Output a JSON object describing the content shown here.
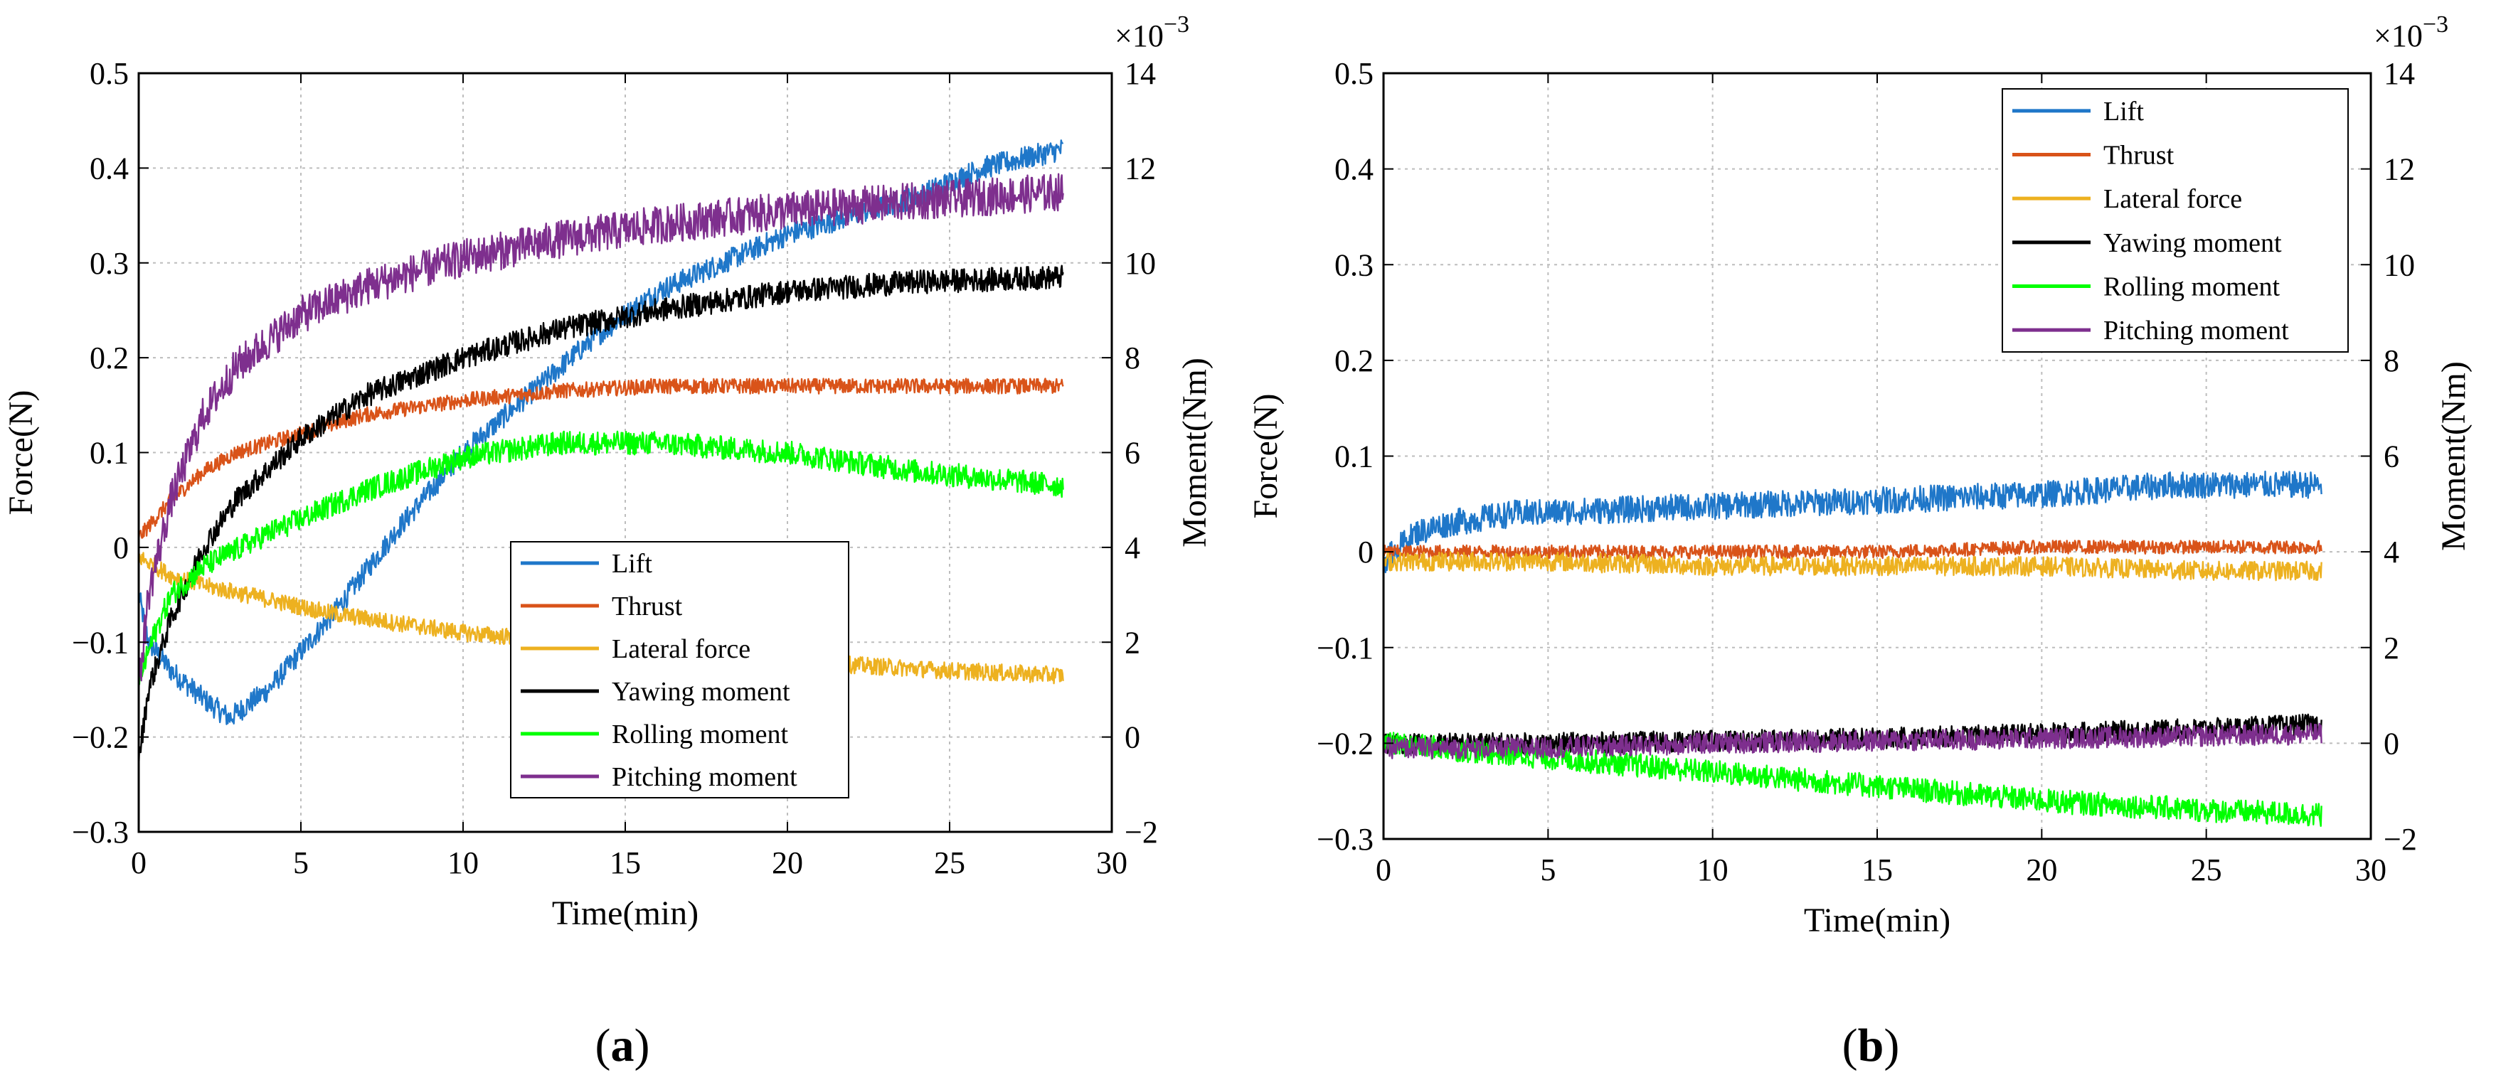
{
  "chart_data": [
    {
      "type": "line",
      "panel_label": {
        "open": "(",
        "letter": "a",
        "close": ")"
      },
      "xlabel": "Time(min)",
      "ylabel_left": "Force(N)",
      "ylabel_right": "Moment(Nm)",
      "right_axis_exponent": "×10",
      "right_axis_exponent_power": "−3",
      "xlim": [
        0,
        30
      ],
      "ylim_left": [
        -0.3,
        0.5
      ],
      "ylim_right": [
        -2,
        14
      ],
      "x_ticks": [
        "0",
        "5",
        "10",
        "15",
        "20",
        "25",
        "30"
      ],
      "y_left_ticks": [
        "−0.3",
        "−0.2",
        "−0.1",
        "0",
        "0.1",
        "0.2",
        "0.3",
        "0.4",
        "0.5"
      ],
      "y_right_ticks": [
        "−2",
        "0",
        "2",
        "4",
        "6",
        "8",
        "10",
        "12",
        "14"
      ],
      "grid": true,
      "legend_position": "lower-right",
      "series": [
        {
          "name": "Lift",
          "color": "#1F77C9",
          "axis": "left",
          "noise": 0.012,
          "x": [
            0,
            0.3,
            1,
            2,
            2.8,
            4,
            6,
            8,
            10,
            12,
            14,
            16,
            18,
            20,
            22,
            24,
            26,
            28.5
          ],
          "y": [
            -0.05,
            -0.1,
            -0.13,
            -0.16,
            -0.18,
            -0.15,
            -0.07,
            0.02,
            0.1,
            0.16,
            0.22,
            0.27,
            0.3,
            0.33,
            0.35,
            0.37,
            0.4,
            0.42
          ]
        },
        {
          "name": "Thrust",
          "color": "#D95319",
          "axis": "left",
          "noise": 0.008,
          "x": [
            0,
            0.5,
            1,
            2,
            3,
            5,
            7,
            10,
            13,
            16,
            20,
            24,
            28.5
          ],
          "y": [
            0.01,
            0.03,
            0.05,
            0.08,
            0.1,
            0.12,
            0.14,
            0.155,
            0.165,
            0.17,
            0.17,
            0.17,
            0.17
          ]
        },
        {
          "name": "Lateral force",
          "color": "#EDB120",
          "axis": "left",
          "noise": 0.009,
          "x": [
            0,
            0.5,
            1,
            2,
            4,
            6,
            10,
            15,
            20,
            25,
            28.5
          ],
          "y": [
            -0.01,
            -0.02,
            -0.03,
            -0.04,
            -0.055,
            -0.07,
            -0.09,
            -0.105,
            -0.12,
            -0.13,
            -0.135
          ]
        },
        {
          "name": "Yawing moment",
          "color": "#000000",
          "axis": "right",
          "noise": 0.25,
          "x": [
            0,
            0.3,
            1,
            2,
            3,
            5,
            7,
            10,
            13,
            16,
            20,
            24,
            28.5
          ],
          "y": [
            -0.5,
            1.0,
            2.5,
            4.0,
            5.0,
            6.3,
            7.2,
            8.0,
            8.6,
            9.0,
            9.4,
            9.6,
            9.7
          ]
        },
        {
          "name": "Rolling moment",
          "color": "#00FF00",
          "axis": "right",
          "noise": 0.25,
          "x": [
            0,
            0.5,
            1,
            2,
            4,
            7,
            10,
            13,
            16,
            20,
            24,
            28.5
          ],
          "y": [
            1.2,
            2.2,
            3.0,
            3.6,
            4.3,
            5.2,
            5.9,
            6.2,
            6.2,
            6.0,
            5.6,
            5.3
          ]
        },
        {
          "name": "Pitching moment",
          "color": "#7E2F8E",
          "axis": "right",
          "noise": 0.4,
          "x": [
            0,
            0.3,
            1,
            2,
            3,
            5,
            7,
            10,
            13,
            16,
            20,
            24,
            28.5
          ],
          "y": [
            1.0,
            3.0,
            5.0,
            6.8,
            7.8,
            8.9,
            9.5,
            10.1,
            10.5,
            10.8,
            11.1,
            11.3,
            11.5
          ]
        }
      ]
    },
    {
      "type": "line",
      "panel_label": {
        "open": "(",
        "letter": "b",
        "close": ")"
      },
      "xlabel": "Time(min)",
      "ylabel_left": "Force(N)",
      "ylabel_right": "Moment(Nm)",
      "right_axis_exponent": "×10",
      "right_axis_exponent_power": "−3",
      "xlim": [
        0,
        30
      ],
      "ylim_left": [
        -0.3,
        0.5
      ],
      "ylim_right": [
        -2,
        14
      ],
      "x_ticks": [
        "0",
        "5",
        "10",
        "15",
        "20",
        "25",
        "30"
      ],
      "y_left_ticks": [
        "−0.3",
        "−0.2",
        "−0.1",
        "0",
        "0.1",
        "0.2",
        "0.3",
        "0.4",
        "0.5"
      ],
      "y_right_ticks": [
        "−2",
        "0",
        "2",
        "4",
        "6",
        "8",
        "10",
        "12",
        "14"
      ],
      "grid": true,
      "legend_position": "top-right",
      "series": [
        {
          "name": "Lift",
          "color": "#1F77C9",
          "axis": "left",
          "noise": 0.014,
          "x": [
            0,
            0.3,
            1,
            2,
            4,
            8,
            12,
            16,
            20,
            24,
            28.5
          ],
          "y": [
            -0.01,
            0.0,
            0.02,
            0.03,
            0.04,
            0.045,
            0.05,
            0.055,
            0.06,
            0.07,
            0.07
          ]
        },
        {
          "name": "Thrust",
          "color": "#D95319",
          "axis": "left",
          "noise": 0.007,
          "x": [
            0,
            5,
            10,
            15,
            20,
            25,
            28.5
          ],
          "y": [
            0.0,
            0.0,
            0.0,
            0.0,
            0.005,
            0.005,
            0.005
          ]
        },
        {
          "name": "Lateral force",
          "color": "#EDB120",
          "axis": "left",
          "noise": 0.01,
          "x": [
            0,
            5,
            10,
            15,
            20,
            25,
            28.5
          ],
          "y": [
            -0.01,
            -0.01,
            -0.015,
            -0.015,
            -0.015,
            -0.02,
            -0.02
          ]
        },
        {
          "name": "Yawing moment",
          "color": "#000000",
          "axis": "right",
          "noise": 0.22,
          "x": [
            0,
            5,
            10,
            15,
            20,
            25,
            28.5
          ],
          "y": [
            0.0,
            0.0,
            0.05,
            0.1,
            0.2,
            0.3,
            0.4
          ]
        },
        {
          "name": "Rolling moment",
          "color": "#00FF00",
          "axis": "right",
          "noise": 0.25,
          "x": [
            0,
            5,
            10,
            15,
            20,
            25,
            28.5
          ],
          "y": [
            0.0,
            -0.3,
            -0.6,
            -0.9,
            -1.2,
            -1.4,
            -1.5
          ]
        },
        {
          "name": "Pitching moment",
          "color": "#7E2F8E",
          "axis": "right",
          "noise": 0.22,
          "x": [
            0,
            5,
            10,
            15,
            20,
            25,
            28.5
          ],
          "y": [
            -0.1,
            -0.1,
            0.0,
            0.05,
            0.1,
            0.15,
            0.2
          ]
        }
      ]
    }
  ]
}
